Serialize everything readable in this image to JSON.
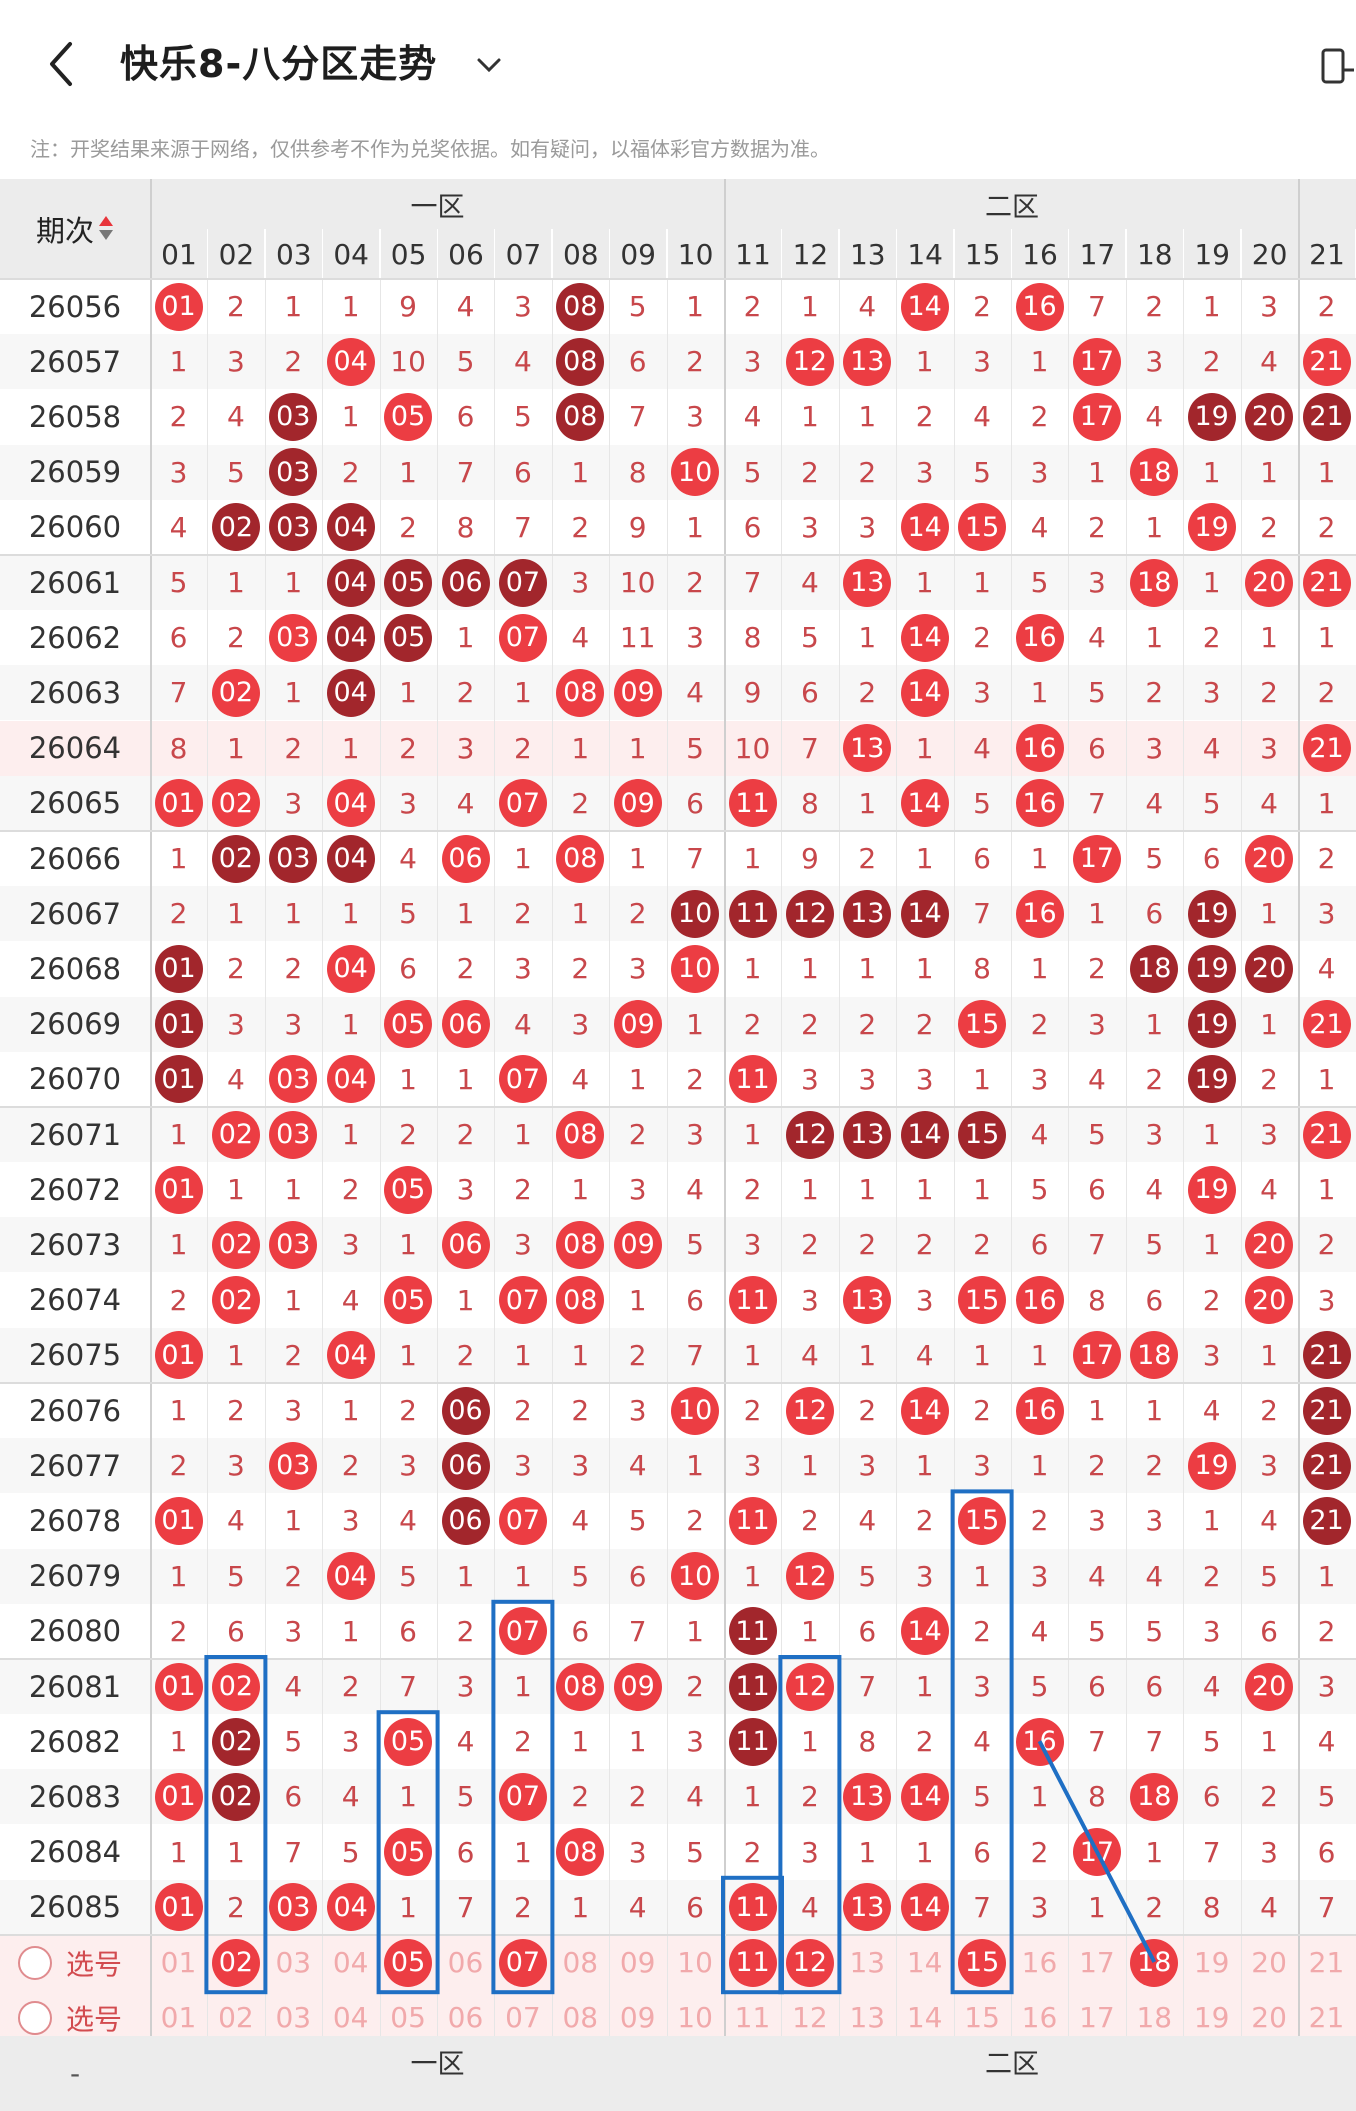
{
  "header": {
    "title": "快乐8-八分区走势",
    "back_icon": "chevron-left-icon",
    "dropdown_icon": "chevron-down-icon"
  },
  "note": "注：开奖结果来源于网络，仅供参考不作为兑奖依据。如有疑问，以福体彩官方数据为准。",
  "table": {
    "period_header": "期次",
    "zones": [
      "一区",
      "二区"
    ],
    "columns": [
      "01",
      "02",
      "03",
      "04",
      "05",
      "06",
      "07",
      "08",
      "09",
      "10",
      "11",
      "12",
      "13",
      "14",
      "15",
      "16",
      "17",
      "18",
      "19",
      "20",
      "21"
    ],
    "rows": [
      {
        "period": "26056",
        "cells": [
          "01",
          "2",
          "1",
          "1",
          "9",
          "4",
          "3",
          "08",
          "5",
          "1",
          "2",
          "1",
          "4",
          "14",
          "2",
          "16",
          "7",
          "2",
          "1",
          "3",
          "2"
        ]
      },
      {
        "period": "26057",
        "cells": [
          "1",
          "3",
          "2",
          "04",
          "10",
          "5",
          "4",
          "08",
          "6",
          "2",
          "3",
          "12",
          "13",
          "1",
          "3",
          "1",
          "17",
          "3",
          "2",
          "4",
          "21"
        ]
      },
      {
        "period": "26058",
        "cells": [
          "2",
          "4",
          "03",
          "1",
          "05",
          "6",
          "5",
          "08",
          "7",
          "3",
          "4",
          "1",
          "1",
          "2",
          "4",
          "2",
          "17",
          "4",
          "19",
          "20",
          "21"
        ]
      },
      {
        "period": "26059",
        "cells": [
          "3",
          "5",
          "03",
          "2",
          "1",
          "7",
          "6",
          "1",
          "8",
          "10",
          "5",
          "2",
          "2",
          "3",
          "5",
          "3",
          "1",
          "18",
          "1",
          "1",
          "1"
        ]
      },
      {
        "period": "26060",
        "cells": [
          "4",
          "02",
          "03",
          "04",
          "2",
          "8",
          "7",
          "2",
          "9",
          "1",
          "6",
          "3",
          "3",
          "14",
          "15",
          "4",
          "2",
          "1",
          "19",
          "2",
          "2"
        ]
      },
      {
        "period": "26061",
        "cells": [
          "5",
          "1",
          "1",
          "04",
          "05",
          "06",
          "07",
          "3",
          "10",
          "2",
          "7",
          "4",
          "13",
          "1",
          "1",
          "5",
          "3",
          "18",
          "1",
          "20",
          "21"
        ]
      },
      {
        "period": "26062",
        "cells": [
          "6",
          "2",
          "03",
          "04",
          "05",
          "1",
          "07",
          "4",
          "11",
          "3",
          "8",
          "5",
          "1",
          "14",
          "2",
          "16",
          "4",
          "1",
          "2",
          "1",
          "1"
        ]
      },
      {
        "period": "26063",
        "cells": [
          "7",
          "02",
          "1",
          "04",
          "1",
          "2",
          "1",
          "08",
          "09",
          "4",
          "9",
          "6",
          "2",
          "14",
          "3",
          "1",
          "5",
          "2",
          "3",
          "2",
          "2"
        ]
      },
      {
        "period": "26064",
        "cells": [
          "8",
          "1",
          "2",
          "1",
          "2",
          "3",
          "2",
          "1",
          "1",
          "5",
          "10",
          "7",
          "13",
          "1",
          "4",
          "16",
          "6",
          "3",
          "4",
          "3",
          "21"
        ]
      },
      {
        "period": "26065",
        "cells": [
          "01",
          "02",
          "3",
          "04",
          "3",
          "4",
          "07",
          "2",
          "09",
          "6",
          "11",
          "8",
          "1",
          "14",
          "5",
          "16",
          "7",
          "4",
          "5",
          "4",
          "1"
        ]
      },
      {
        "period": "26066",
        "cells": [
          "1",
          "02",
          "03",
          "04",
          "4",
          "06",
          "1",
          "08",
          "1",
          "7",
          "1",
          "9",
          "2",
          "1",
          "6",
          "1",
          "17",
          "5",
          "6",
          "20",
          "2"
        ]
      },
      {
        "period": "26067",
        "cells": [
          "2",
          "1",
          "1",
          "1",
          "5",
          "1",
          "2",
          "1",
          "2",
          "10",
          "11",
          "12",
          "13",
          "14",
          "7",
          "16",
          "1",
          "6",
          "19",
          "1",
          "3"
        ]
      },
      {
        "period": "26068",
        "cells": [
          "01",
          "2",
          "2",
          "04",
          "6",
          "2",
          "3",
          "2",
          "3",
          "10",
          "1",
          "1",
          "1",
          "1",
          "8",
          "1",
          "2",
          "18",
          "19",
          "20",
          "4"
        ]
      },
      {
        "period": "26069",
        "cells": [
          "01",
          "3",
          "3",
          "1",
          "05",
          "06",
          "4",
          "3",
          "09",
          "1",
          "2",
          "2",
          "2",
          "2",
          "15",
          "2",
          "3",
          "1",
          "19",
          "1",
          "21"
        ]
      },
      {
        "period": "26070",
        "cells": [
          "01",
          "4",
          "03",
          "04",
          "1",
          "1",
          "07",
          "4",
          "1",
          "2",
          "11",
          "3",
          "3",
          "3",
          "1",
          "3",
          "4",
          "2",
          "19",
          "2",
          "1"
        ]
      },
      {
        "period": "26071",
        "cells": [
          "1",
          "02",
          "03",
          "1",
          "2",
          "2",
          "1",
          "08",
          "2",
          "3",
          "1",
          "12",
          "13",
          "14",
          "15",
          "4",
          "5",
          "3",
          "1",
          "3",
          "21"
        ]
      },
      {
        "period": "26072",
        "cells": [
          "01",
          "1",
          "1",
          "2",
          "05",
          "3",
          "2",
          "1",
          "3",
          "4",
          "2",
          "1",
          "1",
          "1",
          "1",
          "5",
          "6",
          "4",
          "19",
          "4",
          "1"
        ]
      },
      {
        "period": "26073",
        "cells": [
          "1",
          "02",
          "03",
          "3",
          "1",
          "06",
          "3",
          "08",
          "09",
          "5",
          "3",
          "2",
          "2",
          "2",
          "2",
          "6",
          "7",
          "5",
          "1",
          "20",
          "2"
        ]
      },
      {
        "period": "26074",
        "cells": [
          "2",
          "02",
          "1",
          "4",
          "05",
          "1",
          "07",
          "08",
          "1",
          "6",
          "11",
          "3",
          "13",
          "3",
          "15",
          "16",
          "8",
          "6",
          "2",
          "20",
          "3"
        ]
      },
      {
        "period": "26075",
        "cells": [
          "01",
          "1",
          "2",
          "04",
          "1",
          "2",
          "1",
          "1",
          "2",
          "7",
          "1",
          "4",
          "1",
          "4",
          "1",
          "1",
          "17",
          "18",
          "3",
          "1",
          "21"
        ]
      },
      {
        "period": "26076",
        "cells": [
          "1",
          "2",
          "3",
          "1",
          "2",
          "06",
          "2",
          "2",
          "3",
          "10",
          "2",
          "12",
          "2",
          "14",
          "2",
          "16",
          "1",
          "1",
          "4",
          "2",
          "21"
        ]
      },
      {
        "period": "26077",
        "cells": [
          "2",
          "3",
          "03",
          "2",
          "3",
          "06",
          "3",
          "3",
          "4",
          "1",
          "3",
          "1",
          "3",
          "1",
          "3",
          "1",
          "2",
          "2",
          "19",
          "3",
          "21"
        ]
      },
      {
        "period": "26078",
        "cells": [
          "01",
          "4",
          "1",
          "3",
          "4",
          "06",
          "07",
          "4",
          "5",
          "2",
          "11",
          "2",
          "4",
          "2",
          "15",
          "2",
          "3",
          "3",
          "1",
          "4",
          "21"
        ]
      },
      {
        "period": "26079",
        "cells": [
          "1",
          "5",
          "2",
          "04",
          "5",
          "1",
          "1",
          "5",
          "6",
          "10",
          "1",
          "12",
          "5",
          "3",
          "1",
          "3",
          "4",
          "4",
          "2",
          "5",
          "1"
        ]
      },
      {
        "period": "26080",
        "cells": [
          "2",
          "6",
          "3",
          "1",
          "6",
          "2",
          "07",
          "6",
          "7",
          "1",
          "11",
          "1",
          "6",
          "14",
          "2",
          "4",
          "5",
          "5",
          "3",
          "6",
          "2"
        ]
      },
      {
        "period": "26081",
        "cells": [
          "01",
          "02",
          "4",
          "2",
          "7",
          "3",
          "1",
          "08",
          "09",
          "2",
          "11",
          "12",
          "7",
          "1",
          "3",
          "5",
          "6",
          "6",
          "4",
          "20",
          "3"
        ]
      },
      {
        "period": "26082",
        "cells": [
          "1",
          "02",
          "5",
          "3",
          "05",
          "4",
          "2",
          "1",
          "1",
          "3",
          "11",
          "1",
          "8",
          "2",
          "4",
          "16",
          "7",
          "7",
          "5",
          "1",
          "4"
        ]
      },
      {
        "period": "26083",
        "cells": [
          "01",
          "02",
          "6",
          "4",
          "1",
          "5",
          "07",
          "2",
          "2",
          "4",
          "1",
          "2",
          "13",
          "14",
          "5",
          "1",
          "8",
          "18",
          "6",
          "2",
          "5"
        ]
      },
      {
        "period": "26084",
        "cells": [
          "1",
          "1",
          "7",
          "5",
          "05",
          "6",
          "1",
          "08",
          "3",
          "5",
          "2",
          "3",
          "1",
          "1",
          "6",
          "2",
          "17",
          "1",
          "7",
          "3",
          "6"
        ]
      },
      {
        "period": "26085",
        "cells": [
          "01",
          "2",
          "03",
          "04",
          "1",
          "7",
          "2",
          "1",
          "4",
          "6",
          "11",
          "4",
          "13",
          "14",
          "7",
          "3",
          "1",
          "2",
          "8",
          "4",
          "7"
        ]
      }
    ],
    "dark_balls": [
      "0-7",
      "1-7",
      "2-2",
      "2-7",
      "2-18",
      "2-19",
      "2-20",
      "3-2",
      "4-1",
      "4-2",
      "4-3",
      "5-3",
      "5-4",
      "5-5",
      "5-6",
      "6-3",
      "6-4",
      "7-3",
      "10-1",
      "10-2",
      "10-3",
      "11-9",
      "11-10",
      "11-11",
      "11-12",
      "11-13",
      "11-18",
      "12-0",
      "12-17",
      "12-18",
      "12-19",
      "13-0",
      "13-18",
      "14-0",
      "14-18",
      "15-11",
      "15-12",
      "15-13",
      "15-14",
      "19-20",
      "20-5",
      "20-20",
      "21-5",
      "21-20",
      "22-5",
      "22-20",
      "24-10",
      "25-10",
      "26-1",
      "26-10",
      "27-1"
    ],
    "select_rows": [
      {
        "label": "选号",
        "selected": [
          "02",
          "05",
          "07",
          "11",
          "12",
          "15",
          "18"
        ]
      },
      {
        "label": "选号",
        "selected": []
      }
    ],
    "footer_zones": [
      "一区",
      "二区"
    ],
    "footer_period": "-",
    "accent_red": "#ec3d43",
    "accent_dark": "#a2262c",
    "box_blue": "#1f6fc4"
  }
}
